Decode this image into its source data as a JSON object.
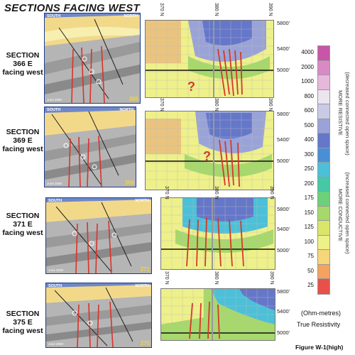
{
  "title": "SECTIONS FACING WEST",
  "sections": [
    {
      "id": "366",
      "label1": "SECTION",
      "label2": "366 E",
      "label3": "facing west",
      "north_label": "NORTH",
      "south_label": "SOUTH",
      "date": "June 2000",
      "number": "366",
      "n_ticks": [
        "370 N",
        "380 N",
        "390 N"
      ],
      "elev": [
        "5800'",
        "5400'",
        "5000'"
      ],
      "question": "?"
    },
    {
      "id": "369",
      "label1": "SECTION",
      "label2": "369 E",
      "label3": "facing west",
      "north_label": "NORTH",
      "south_label": "SOUTH",
      "date": "June 2000",
      "number": "369",
      "n_ticks": [
        "370 N",
        "380 N",
        "390 N"
      ],
      "elev": [
        "5800'",
        "5400'",
        "5000'"
      ],
      "question": "?"
    },
    {
      "id": "371",
      "label1": "SECTION",
      "label2": "371 E",
      "label3": "facing west",
      "north_label": "NORTH",
      "south_label": "SOUTH",
      "date": "June 2000",
      "number": "371",
      "n_ticks": [
        "370 N",
        "380 N",
        "390 N"
      ],
      "elev": [
        "5800'",
        "5400'",
        "5000'"
      ],
      "question": ""
    },
    {
      "id": "375",
      "label1": "SECTION",
      "label2": "375 E",
      "label3": "facing west",
      "north_label": "NORTH",
      "south_label": "SOUTH",
      "date": "June 2000",
      "number": "375",
      "n_ticks": [
        "370 N",
        "380 N",
        "390 N"
      ],
      "elev": [
        "5800'",
        "5400'",
        "5000'"
      ],
      "question": ""
    }
  ],
  "legend": {
    "values": [
      "4000",
      "2000",
      "1000",
      "800",
      "600",
      "500",
      "400",
      "300",
      "250",
      "200",
      "175",
      "150",
      "125",
      "100",
      "75",
      "50",
      "25"
    ],
    "colors": [
      "#c855a8",
      "#d98ac6",
      "#e8b7dc",
      "#ece4ef",
      "#c9cbe6",
      "#9aa3d8",
      "#6577c9",
      "#4a8fd6",
      "#4cc0d8",
      "#47c8a4",
      "#6cd07a",
      "#a6d96a",
      "#d9e66a",
      "#eef08a",
      "#f5d77a",
      "#f3a35f",
      "#e8504a"
    ],
    "resistive": "MORE RESISTIVE",
    "resistive_note": "(decreased connected open space)",
    "conductive": "MORE CONDUCTIVE",
    "conductive_note": "(increased connected open space)",
    "units": "(Ohm-metres)",
    "caption": "True Resistivity"
  },
  "figure_label": "Figure W-1(high)"
}
